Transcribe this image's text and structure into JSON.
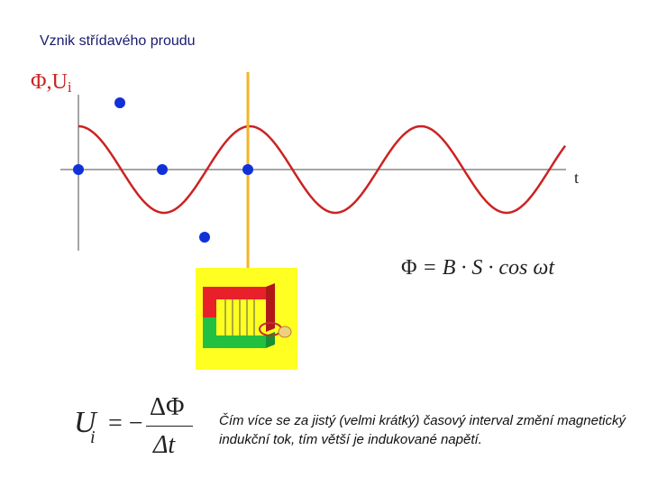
{
  "title": "Vznik střídavého proudu",
  "axis": {
    "y_label": "Φ,U",
    "y_label_sub": "i",
    "x_label": "t"
  },
  "formula_flux": {
    "left": "Φ",
    "right": "= B · S · cos ωt"
  },
  "formula_voltage": {
    "u": "U",
    "sub": "i",
    "eq": "= −",
    "numerator": "ΔΦ",
    "denominator": "Δt"
  },
  "text": "Čím více se za jistý (velmi krátký) časový interval změní magnetický indukční tok, tím větší je indukované napětí."
}
